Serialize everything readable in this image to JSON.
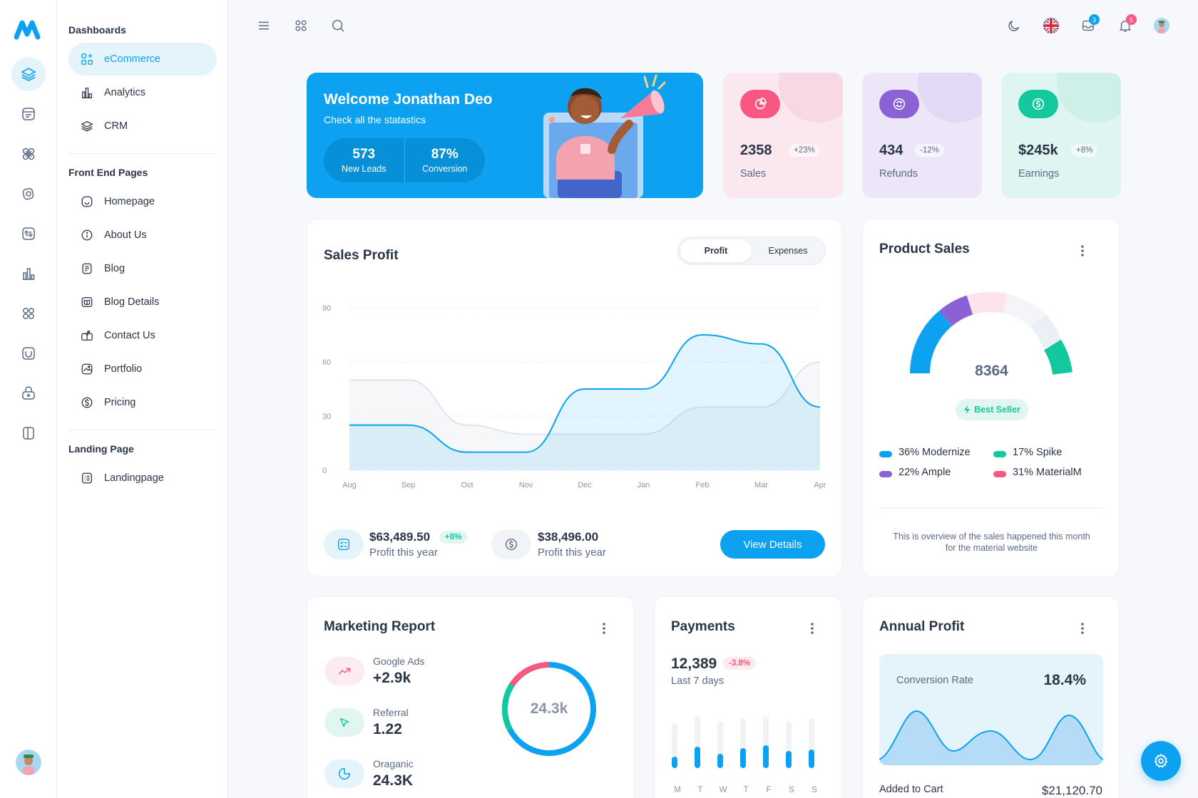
{
  "sidebar": {
    "sections": [
      {
        "title": "Dashboards",
        "items": [
          {
            "label": "eCommerce",
            "icon": "grid-plus-icon",
            "active": true
          },
          {
            "label": "Analytics",
            "icon": "bar-chart-icon"
          },
          {
            "label": "CRM",
            "icon": "layers-icon"
          }
        ]
      },
      {
        "title": "Front End Pages",
        "items": [
          {
            "label": "Homepage",
            "icon": "smile-icon"
          },
          {
            "label": "About Us",
            "icon": "info-icon"
          },
          {
            "label": "Blog",
            "icon": "document-icon"
          },
          {
            "label": "Blog Details",
            "icon": "book-icon"
          },
          {
            "label": "Contact Us",
            "icon": "mailbox-icon"
          },
          {
            "label": "Portfolio",
            "icon": "image-icon"
          },
          {
            "label": "Pricing",
            "icon": "dollar-icon"
          }
        ]
      },
      {
        "title": "Landing Page",
        "items": [
          {
            "label": "Landingpage",
            "icon": "list-icon"
          }
        ]
      }
    ]
  },
  "topbar": {
    "message_count": "3",
    "notification_count": "5"
  },
  "welcome": {
    "title": "Welcome Jonathan Deo",
    "subtitle": "Check all the statastics",
    "leads_value": "573",
    "leads_label": "New Leads",
    "conversion_value": "87%",
    "conversion_label": "Conversion"
  },
  "mini_cards": [
    {
      "value": "2358",
      "change": "+23%",
      "label": "Sales",
      "bg": "#fbe7ee",
      "accent": "#f9577f",
      "icon": "pie-chart-icon"
    },
    {
      "value": "434",
      "change": "-12%",
      "label": "Refunds",
      "bg": "#ece6f8",
      "accent": "#8b62d6",
      "icon": "refresh-icon"
    },
    {
      "value": "$245k",
      "change": "+8%",
      "label": "Earnings",
      "bg": "#def5f1",
      "accent": "#13c79f",
      "icon": "dollar-icon"
    }
  ],
  "sales_profit": {
    "title": "Sales Profit",
    "toggle": {
      "active": "Profit",
      "inactive": "Expenses"
    },
    "total_profit": "$63,489.50",
    "total_profit_change": "+8%",
    "total_profit_label": "Profit this year",
    "expense_total": "$38,496.00",
    "expense_label": "Profit this year",
    "button_label": "View Details"
  },
  "chart_data": {
    "type": "area",
    "categories": [
      "Aug",
      "Sep",
      "Oct",
      "Nov",
      "Dec",
      "Jan",
      "Feb",
      "Mar",
      "Apr"
    ],
    "yticks": [
      0,
      30,
      60,
      90
    ],
    "ylim": [
      0,
      90
    ],
    "series": [
      {
        "name": "Profit",
        "color": "#0da2f1",
        "values": [
          25,
          25,
          10,
          10,
          45,
          45,
          75,
          70,
          35
        ]
      },
      {
        "name": "Expenses",
        "color": "#dfe5ec",
        "values": [
          50,
          50,
          25,
          20,
          20,
          20,
          35,
          35,
          60
        ]
      }
    ]
  },
  "product_sales": {
    "title": "Product Sales",
    "total": "8364",
    "badge": "Best Seller",
    "legend": [
      {
        "label": "36% Modernize",
        "color": "#0da2f1",
        "value": 36
      },
      {
        "label": "17% Spike",
        "color": "#13c79f",
        "value": 17
      },
      {
        "label": "22% Ample",
        "color": "#8b62d6",
        "value": 22
      },
      {
        "label": "31% MaterialM",
        "color": "#f9577f",
        "value": 31
      }
    ],
    "description": "This is overview of the sales happened this month for the material website"
  },
  "marketing": {
    "title": "Marketing Report",
    "items": [
      {
        "label": "Google Ads",
        "value": "+2.9k",
        "icon": "trending-up-icon",
        "bg": "#fdecef",
        "color": "#f9577f"
      },
      {
        "label": "Referral",
        "value": "1.22",
        "icon": "cursor-icon",
        "bg": "#e2f6f1",
        "color": "#13c79f"
      },
      {
        "label": "Oraganic",
        "value": "24.3K",
        "icon": "pie-chart-icon",
        "bg": "#e5f3fb",
        "color": "#0da2f1"
      }
    ],
    "donut_value": "24.3k"
  },
  "payments": {
    "title": "Payments",
    "value": "12,389",
    "change": "-3.8%",
    "period": "Last 7 days",
    "days": [
      "M",
      "T",
      "W",
      "T",
      "F",
      "S",
      "S"
    ]
  },
  "annual_profit": {
    "title": "Annual Profit",
    "conversion_label": "Conversion Rate",
    "conversion_value": "18.4%",
    "cart_label": "Added to Cart",
    "cart_value": "$21,120.70"
  }
}
